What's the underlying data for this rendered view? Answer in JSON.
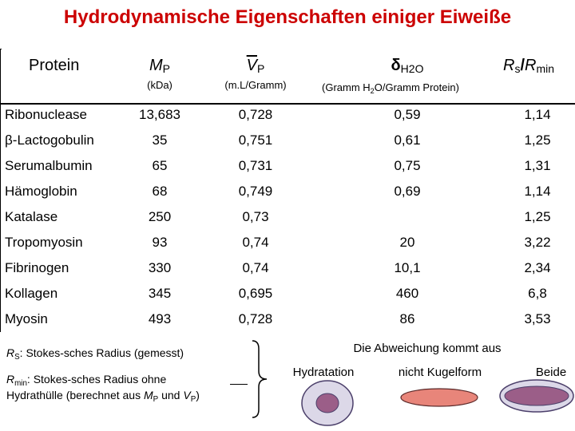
{
  "title": "Hydrodynamische Eigenschaften einiger Eiweiße",
  "headers": {
    "protein": "Protein",
    "mp_letter": "M",
    "mp_sub": "P",
    "mp_unit": "(kDa)",
    "vp_letter": "V",
    "vp_sub": "P",
    "vp_unit": "(m.L/Gramm)",
    "delta_letter": "δ",
    "delta_sub": "H2O",
    "delta_unit_1": "(Gramm H",
    "delta_unit_sub": "2",
    "delta_unit_2": "O/Gramm Protein)",
    "ratio_r1": "R",
    "ratio_s": "s",
    "ratio_slash": "/",
    "ratio_r2": "R",
    "ratio_min": "min"
  },
  "rows": [
    {
      "protein": "Ribonuclease",
      "mp": "13,683",
      "vp": "0,728",
      "delta": "0,59",
      "ratio": "1,14"
    },
    {
      "protein": "β-Lactogobulin",
      "mp": "35",
      "vp": "0,751",
      "delta": "0,61",
      "ratio": "1,25"
    },
    {
      "protein": "Serumalbumin",
      "mp": "65",
      "vp": "0,731",
      "delta": "0,75",
      "ratio": "1,31"
    },
    {
      "protein": "Hämoglobin",
      "mp": "68",
      "vp": "0,749",
      "delta": "0,69",
      "ratio": "1,14"
    },
    {
      "protein": "Katalase",
      "mp": "250",
      "vp": "0,73",
      "delta": "",
      "ratio": "1,25"
    },
    {
      "protein": "Tropomyosin",
      "mp": "93",
      "vp": "0,74",
      "delta": "20",
      "ratio": "3,22"
    },
    {
      "protein": "Fibrinogen",
      "mp": "330",
      "vp": "0,74",
      "delta": "10,1",
      "ratio": "2,34"
    },
    {
      "protein": "Kollagen",
      "mp": "345",
      "vp": "0,695",
      "delta": "460",
      "ratio": "6,8"
    },
    {
      "protein": "Myosin",
      "mp": "493",
      "vp": "0,728",
      "delta": "86",
      "ratio": "3,53"
    }
  ],
  "notes": {
    "rs_letter": "R",
    "rs_sub": "S",
    "rs_text": ": Stokes-sches Radius (gemesst)",
    "rmin_letter": "R",
    "rmin_sub": "min",
    "rmin_text": ": Stokes-sches Radius ohne",
    "line3_a": "Hydrathülle (berechnet aus ",
    "line3_m": "M",
    "line3_msub": "P",
    "line3_und": " und ",
    "line3_v": "V",
    "line3_vsub": "P",
    "line3_end": ")"
  },
  "deviation": {
    "heading": "Die Abweichung kommt aus",
    "causes": [
      "Hydratation",
      "nicht Kugelform",
      "Beide"
    ],
    "colors": {
      "ring_fill": "#dcd8e8",
      "ring_stroke": "#4b3f6a",
      "core": "#9b5e88",
      "spindle": "#e8857a"
    }
  },
  "colors": {
    "title": "#cc0000",
    "text": "#000000",
    "background": "#ffffff"
  }
}
